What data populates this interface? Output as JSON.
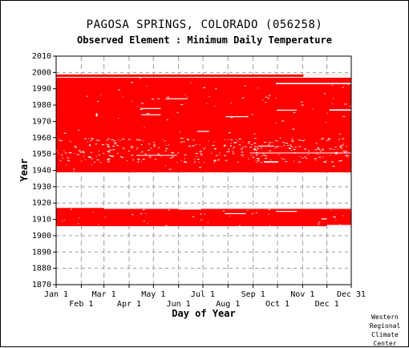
{
  "chart_data": {
    "type": "heatmap",
    "title": "PAGOSA SPRINGS, COLORADO   (056258)",
    "subtitle": "Observed Element : Minimum Daily Temperature",
    "xlabel": "Day of Year",
    "ylabel": "Year",
    "xlim": [
      1,
      365
    ],
    "ylim": [
      1870,
      2010
    ],
    "y_ticks": [
      1870,
      1880,
      1890,
      1900,
      1910,
      1920,
      1930,
      1940,
      1950,
      1960,
      1970,
      1980,
      1990,
      2000,
      2010
    ],
    "x_ticks_top_row": [
      {
        "label": "Jan 1",
        "day": 1
      },
      {
        "label": "Mar 1",
        "day": 60
      },
      {
        "label": "May 1",
        "day": 121
      },
      {
        "label": "Jul 1",
        "day": 182
      },
      {
        "label": "Sep 1",
        "day": 244
      },
      {
        "label": "Nov 1",
        "day": 305
      },
      {
        "label": "Dec 31",
        "day": 365
      }
    ],
    "x_ticks_bottom_row": [
      {
        "label": "Feb 1",
        "day": 32
      },
      {
        "label": "Apr 1",
        "day": 91
      },
      {
        "label": "Jun 1",
        "day": 152
      },
      {
        "label": "Aug 1",
        "day": 213
      },
      {
        "label": "Oct 1",
        "day": 274
      },
      {
        "label": "Dec 1",
        "day": 335
      }
    ],
    "grid": true,
    "data_color": "#ff0000",
    "coverage_blocks": [
      {
        "day_start": 1,
        "day_end": 365,
        "year_start": 1905.8,
        "year_end": 1917.0
      },
      {
        "day_start": 1,
        "day_end": 365,
        "year_start": 1938.8,
        "year_end": 1998.8
      }
    ],
    "missing_segments": [
      {
        "day_start": 1,
        "day_end": 365,
        "year_start": 1996.8,
        "year_end": 1997.3
      },
      {
        "day_start": 272,
        "day_end": 365,
        "year_start": 1992.8,
        "year_end": 1993.6
      },
      {
        "day_start": 306,
        "day_end": 365,
        "year_start": 1997.2,
        "year_end": 1998.8
      },
      {
        "day_start": 338,
        "day_end": 365,
        "year_start": 1976.6,
        "year_end": 1977.4
      },
      {
        "day_start": 273,
        "day_end": 298,
        "year_start": 1976.6,
        "year_end": 1977.2
      },
      {
        "day_start": 106,
        "day_end": 130,
        "year_start": 1977.6,
        "year_end": 1978.2
      },
      {
        "day_start": 106,
        "day_end": 130,
        "year_start": 1973.8,
        "year_end": 1974.4
      },
      {
        "day_start": 136,
        "day_end": 163,
        "year_start": 1983.6,
        "year_end": 1984.2
      },
      {
        "day_start": 210,
        "day_end": 238,
        "year_start": 1972.6,
        "year_end": 1973.2
      },
      {
        "day_start": 175,
        "day_end": 190,
        "year_start": 1963.6,
        "year_end": 1964.2
      },
      {
        "day_start": 250,
        "day_end": 270,
        "year_start": 1954.6,
        "year_end": 1955.2
      },
      {
        "day_start": 257,
        "day_end": 275,
        "year_start": 1944.8,
        "year_end": 1945.6
      },
      {
        "day_start": 100,
        "day_end": 150,
        "year_start": 1949.0,
        "year_end": 1949.5
      },
      {
        "day_start": 240,
        "day_end": 365,
        "year_start": 1950.4,
        "year_end": 1950.9
      },
      {
        "day_start": 1,
        "day_end": 60,
        "year_start": 1937.8,
        "year_end": 1938.8
      },
      {
        "day_start": 209,
        "day_end": 235,
        "year_start": 1913.2,
        "year_end": 1913.8
      },
      {
        "day_start": 152,
        "day_end": 180,
        "year_start": 1916.0,
        "year_end": 1916.6
      },
      {
        "day_start": 272,
        "day_end": 298,
        "year_start": 1914.6,
        "year_end": 1915.2
      },
      {
        "day_start": 328,
        "day_end": 335,
        "year_start": 1910.0,
        "year_end": 1910.6
      },
      {
        "day_start": 335,
        "day_end": 365,
        "year_start": 1905.8,
        "year_end": 1906.6
      },
      {
        "day_start": 50,
        "day_end": 52,
        "year_start": 1973.0,
        "year_end": 1975.0
      },
      {
        "day_start": 60,
        "day_end": 365,
        "year_start": 1916.4,
        "year_end": 1917.0
      }
    ],
    "credit": "Western\nRegional\nClimate\nCenter"
  }
}
